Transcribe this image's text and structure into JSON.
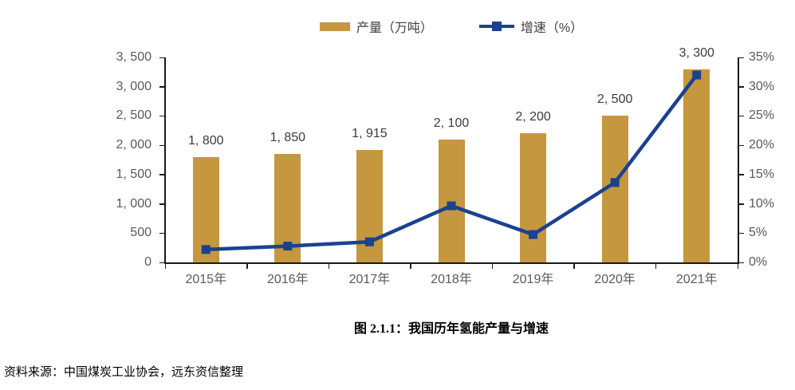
{
  "colors": {
    "bar": "#C5973F",
    "line": "#1B4191",
    "axis": "#1A1A1A",
    "tick_label": "#595959",
    "data_label": "#3B3B3B"
  },
  "legend": [
    {
      "type": "bar",
      "label": "产量（万吨）"
    },
    {
      "type": "line",
      "label": "增速（%）"
    }
  ],
  "chart_data": {
    "type": "combo-bar-line",
    "categories": [
      "2015年",
      "2016年",
      "2017年",
      "2018年",
      "2019年",
      "2020年",
      "2021年"
    ],
    "series": [
      {
        "name": "产量（万吨）",
        "type": "bar",
        "axis": "left",
        "values": [
          1800,
          1850,
          1915,
          2100,
          2200,
          2500,
          3300
        ],
        "labels": [
          "1, 800",
          "1, 850",
          "1, 915",
          "2, 100",
          "2, 200",
          "2, 500",
          "3, 300"
        ]
      },
      {
        "name": "增速（%）",
        "type": "line",
        "axis": "right",
        "values": [
          2.2,
          2.78,
          3.51,
          9.66,
          4.76,
          13.64,
          32.0
        ]
      }
    ],
    "y_left": {
      "min": 0,
      "max": 3500,
      "step": 500,
      "tick_labels": [
        "0",
        "500",
        "1, 000",
        "1, 500",
        "2, 000",
        "2, 500",
        "3, 000",
        "3, 500"
      ]
    },
    "y_right": {
      "min": 0,
      "max": 35,
      "step": 5,
      "tick_labels": [
        "0%",
        "5%",
        "10%",
        "15%",
        "20%",
        "25%",
        "30%",
        "35%"
      ]
    },
    "grid": false,
    "legend_position": "top-center"
  },
  "caption": {
    "title": "图 2.1.1：我国历年氢能产量与增速"
  },
  "source": {
    "text": "资料来源：中国煤炭工业协会，远东资信整理"
  }
}
